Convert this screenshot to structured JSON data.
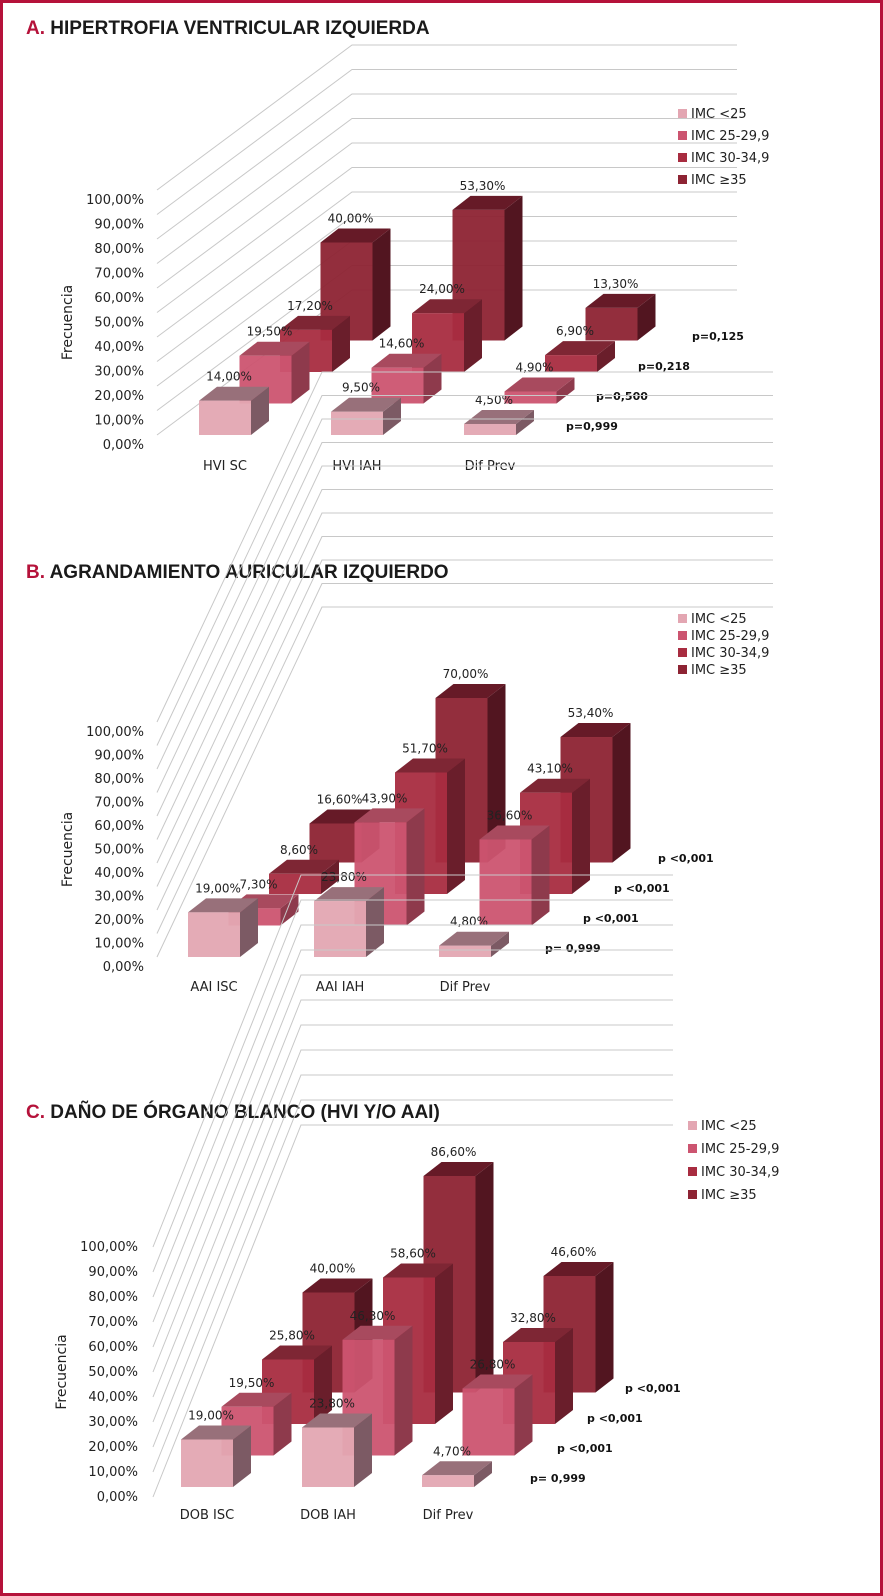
{
  "panels": [
    {
      "letter": "A.",
      "title": "HIPERTROFIA VENTRICULAR IZQUIERDA",
      "chart_data": {
        "type": "bar",
        "ylabel": "Frecuencia",
        "yticks": [
          "0,00%",
          "10,00%",
          "20,00%",
          "30,00%",
          "40,00%",
          "50,00%",
          "60,00%",
          "70,00%",
          "80,00%",
          "90,00%",
          "100,00%"
        ],
        "ylim": [
          0,
          100
        ],
        "categories": [
          "HVI SC",
          "HVI IAH",
          "Dif Prev"
        ],
        "series": [
          {
            "name": "IMC <25",
            "values": [
              14.0,
              9.5,
              4.5
            ],
            "labels": [
              "14,00%",
              "9,50%",
              "4,50%"
            ]
          },
          {
            "name": "IMC 25-29,9",
            "values": [
              19.5,
              14.6,
              4.9
            ],
            "labels": [
              "19,50%",
              "14,60%",
              "4,90%"
            ]
          },
          {
            "name": "IMC 30-34,9",
            "values": [
              17.2,
              24.0,
              6.9
            ],
            "labels": [
              "17,20%",
              "24,00%",
              "6,90%"
            ]
          },
          {
            "name": "IMC ≥35",
            "values": [
              40.0,
              53.3,
              13.3
            ],
            "labels": [
              "40,00%",
              "53,30%",
              "13,30%"
            ]
          }
        ],
        "pvalues": [
          "p=0,999",
          "p=0,500",
          "p=0,218",
          "p=0,125"
        ],
        "legend": "top-right"
      }
    },
    {
      "letter": "B.",
      "title": "AGRANDAMIENTO AURICULAR IZQUIERDO",
      "chart_data": {
        "type": "bar",
        "ylabel": "Frecuencia",
        "yticks": [
          "0,00%",
          "10,00%",
          "20,00%",
          "30,00%",
          "40,00%",
          "50,00%",
          "60,00%",
          "70,00%",
          "80,00%",
          "90,00%",
          "100,00%"
        ],
        "ylim": [
          0,
          100
        ],
        "categories": [
          "AAI ISC",
          "AAI IAH",
          "Dif Prev"
        ],
        "series": [
          {
            "name": "IMC <25",
            "values": [
              19.0,
              23.8,
              4.8
            ],
            "labels": [
              "19,00%",
              "23,80%",
              "4,80%"
            ]
          },
          {
            "name": "IMC 25-29,9",
            "values": [
              7.3,
              43.9,
              36.6
            ],
            "labels": [
              "7,30%",
              "43,90%",
              "36,60%"
            ]
          },
          {
            "name": "IMC 30-34,9",
            "values": [
              8.6,
              51.7,
              43.1
            ],
            "labels": [
              "8,60%",
              "51,70%",
              "43,10%"
            ]
          },
          {
            "name": "IMC ≥35",
            "values": [
              16.6,
              70.0,
              53.4
            ],
            "labels": [
              "16,60%",
              "70,00%",
              "53,40%"
            ]
          }
        ],
        "pvalues": [
          "p= 0,999",
          "p <0,001",
          "p <0,001",
          "p <0,001"
        ],
        "legend": "top-right"
      }
    },
    {
      "letter": "C.",
      "title": "DAÑO DE ÓRGANO BLANCO (HVI Y/O AAI)",
      "chart_data": {
        "type": "bar",
        "ylabel": "Frecuencia",
        "yticks": [
          "0,00%",
          "10,00%",
          "20,00%",
          "30,00%",
          "40,00%",
          "50,00%",
          "60,00%",
          "70,00%",
          "80,00%",
          "90,00%",
          "100,00%"
        ],
        "ylim": [
          0,
          100
        ],
        "categories": [
          "DOB ISC",
          "DOB IAH",
          "Dif Prev"
        ],
        "series": [
          {
            "name": "IMC <25",
            "values": [
              19.0,
              23.8,
              4.7
            ],
            "labels": [
              "19,00%",
              "23,80%",
              "4,70%"
            ]
          },
          {
            "name": "IMC 25-29,9",
            "values": [
              19.5,
              46.3,
              26.8
            ],
            "labels": [
              "19,50%",
              "46,30%",
              "26,80%"
            ]
          },
          {
            "name": "IMC 30-34,9",
            "values": [
              25.8,
              58.6,
              32.8
            ],
            "labels": [
              "25,80%",
              "58,60%",
              "32,80%"
            ]
          },
          {
            "name": "IMC ≥35",
            "values": [
              40.0,
              86.6,
              46.6
            ],
            "labels": [
              "40,00%",
              "86,60%",
              "46,60%"
            ]
          }
        ],
        "pvalues": [
          "p= 0,999",
          "p <0,001",
          "p <0,001",
          "p <0,001"
        ],
        "legend": "top-right"
      }
    }
  ],
  "colors": {
    "border": "#b5123a",
    "series": [
      "#e3a6b2",
      "#cc5470",
      "#a82c40",
      "#8d2333"
    ]
  }
}
